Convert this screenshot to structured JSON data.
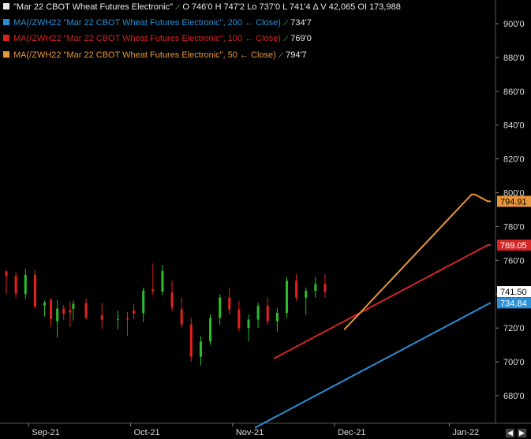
{
  "header": {
    "symbol": "\"Mar 22 CBOT Wheat Futures Electronic\"",
    "ohlc": "O 746'0  H 747'2  Lo 737'0  L 741'4   Δ   V 42,065  OI 173,988"
  },
  "studies": [
    {
      "label": "MA(/ZWH22 \"Mar 22 CBOT Wheat Futures Electronic\", 200 ← Close)",
      "value": "734'7",
      "color": "#2a8fd6"
    },
    {
      "label": "MA(/ZWH22 \"Mar 22 CBOT Wheat Futures Electronic\", 100 ← Close)",
      "value": "769'0",
      "color": "#d42525"
    },
    {
      "label": "MA(/ZWH22 \"Mar 22 CBOT Wheat Futures Electronic\", 50 ← Close)",
      "value": "794'7",
      "color": "#e8963a"
    }
  ],
  "icons": {
    "study_indicator": "sparkline-icon",
    "nav_left": "arrow-left-icon",
    "nav_right": "arrow-right-icon"
  },
  "colors": {
    "up": "#2bbf2b",
    "down": "#e82020",
    "background": "#000000",
    "grid": "#333333"
  },
  "chart_data": {
    "type": "candlestick",
    "ylim": [
      670,
      908
    ],
    "y_ticks": [
      680,
      700,
      720,
      740,
      760,
      780,
      800,
      820,
      840,
      860,
      880,
      900
    ],
    "y_tick_labels": [
      "680'0",
      "700'0",
      "720'0",
      "740'0",
      "760'0",
      "780'0",
      "800'0",
      "820'0",
      "840'0",
      "860'0",
      "880'0",
      "900'0"
    ],
    "x_labels": [
      {
        "label": "Sep-21",
        "index": 8
      },
      {
        "label": "Oct-21",
        "index": 40
      },
      {
        "label": "Nov-21",
        "index": 72
      },
      {
        "label": "Dec-21",
        "index": 104
      },
      {
        "label": "Jan-22",
        "index": 140
      }
    ],
    "bar_count": 154,
    "candles": [
      [
        1,
        753.5,
        754.2,
        740.0,
        750.7
      ],
      [
        4,
        750.7,
        753.0,
        737.6,
        740.4
      ],
      [
        7,
        740.0,
        755.1,
        737.1,
        751.4
      ],
      [
        10,
        751.3,
        754.3,
        732.0,
        732.5
      ],
      [
        13,
        733.3,
        736.2,
        726.8,
        735.1
      ],
      [
        15,
        736.7,
        737.6,
        720.7,
        725.3
      ],
      [
        17,
        724.0,
        736.7,
        714.4,
        731.5
      ],
      [
        19,
        731.5,
        733.7,
        724.7,
        728.5
      ],
      [
        21,
        730.7,
        735.6,
        720.6,
        729.2
      ],
      [
        22,
        731.4,
        736.4,
        724.4,
        734.3
      ],
      [
        26,
        734.8,
        737.4,
        725.0,
        726.1
      ],
      [
        31,
        727.5,
        734.8,
        719.6,
        724.9
      ],
      [
        36,
        725.1,
        730.3,
        719.3,
        725.3
      ],
      [
        39,
        725.8,
        729.6,
        715.2,
        725.0
      ],
      [
        41,
        730.2,
        734.1,
        725.2,
        728.6
      ],
      [
        44,
        728.8,
        743.9,
        723.5,
        742.2
      ],
      [
        47,
        742.9,
        758.1,
        739.4,
        741.7
      ],
      [
        50,
        741.5,
        757.4,
        739.5,
        753.8
      ],
      [
        53,
        741.0,
        748.0,
        730.0,
        732.0
      ],
      [
        56,
        731.0,
        738.0,
        720.0,
        722.0
      ],
      [
        59,
        722.0,
        726.0,
        700.0,
        703.0
      ],
      [
        62,
        703.0,
        715.0,
        698.0,
        712.0
      ],
      [
        65,
        712.0,
        728.0,
        710.0,
        726.0
      ],
      [
        68,
        726.0,
        740.0,
        722.0,
        738.0
      ],
      [
        71,
        738.0,
        744.0,
        728.0,
        731.0
      ],
      [
        74,
        731.0,
        736.0,
        718.0,
        720.0
      ],
      [
        77,
        720.0,
        728.0,
        712.0,
        725.0
      ],
      [
        80,
        725.0,
        735.0,
        720.0,
        733.0
      ],
      [
        83,
        733.0,
        738.0,
        722.0,
        724.0
      ],
      [
        86,
        724.0,
        732.0,
        718.0,
        729.0
      ],
      [
        89,
        729.0,
        750.0,
        726.0,
        748.0
      ],
      [
        92,
        748.0,
        752.0,
        736.0,
        738.0
      ],
      [
        95,
        738.0,
        744.0,
        728.0,
        742.0
      ],
      [
        98,
        742.0,
        750.0,
        738.0,
        746.0
      ],
      [
        101,
        746.0,
        752.0,
        738.0,
        741.5
      ]
    ],
    "ma200": [
      661,
      662,
      663,
      664,
      665,
      666,
      667,
      668,
      669,
      670,
      671,
      672,
      673,
      674,
      675,
      676,
      677,
      678,
      679,
      680,
      681,
      682,
      683,
      684,
      685,
      686,
      687,
      688,
      689,
      690,
      691,
      692,
      693,
      694,
      695,
      696,
      697,
      698,
      699,
      700,
      701,
      702,
      703,
      704,
      705,
      706,
      707,
      708,
      709,
      710,
      711,
      712,
      713,
      714,
      715,
      716,
      717,
      718,
      719,
      720,
      721,
      722,
      723,
      724,
      725,
      726,
      727,
      728,
      729,
      730,
      731,
      732,
      733,
      734,
      734.84
    ],
    "ma100": [
      702,
      703,
      704,
      705,
      706,
      707,
      708,
      709,
      710,
      711,
      712,
      713,
      714,
      715,
      716,
      717,
      718,
      719,
      720,
      721,
      722,
      723,
      724,
      725,
      726,
      727,
      728,
      729,
      730,
      731,
      732,
      733,
      734,
      735,
      736,
      737,
      738,
      739,
      740,
      741,
      742,
      743,
      744,
      745,
      746,
      747,
      748,
      749,
      750,
      751,
      752,
      753,
      754,
      755,
      756,
      757,
      758,
      759,
      760,
      761,
      762,
      763,
      764,
      765,
      766,
      767,
      768,
      769,
      769.05
    ],
    "ma50": [
      719,
      721,
      723,
      725,
      727,
      729,
      731,
      733,
      735,
      737,
      739,
      741,
      743,
      745,
      747,
      749,
      751,
      753,
      755,
      757,
      759,
      761,
      763,
      765,
      767,
      769,
      771,
      773,
      775,
      777,
      779,
      781,
      783,
      785,
      787,
      789,
      791,
      793,
      795,
      797,
      799,
      799,
      798,
      797,
      796,
      795,
      794.91
    ],
    "last_prices": [
      {
        "label": "794.91",
        "value": 794.91,
        "bg": "#e8963a",
        "fg": "#000000"
      },
      {
        "label": "769.05",
        "value": 769.05,
        "bg": "#d42525",
        "fg": "#ffffff"
      },
      {
        "label": "741.50",
        "value": 741.5,
        "bg": "#ffffff",
        "fg": "#000000"
      },
      {
        "label": "734.84",
        "value": 734.84,
        "bg": "#2a8fd6",
        "fg": "#ffffff"
      }
    ]
  }
}
